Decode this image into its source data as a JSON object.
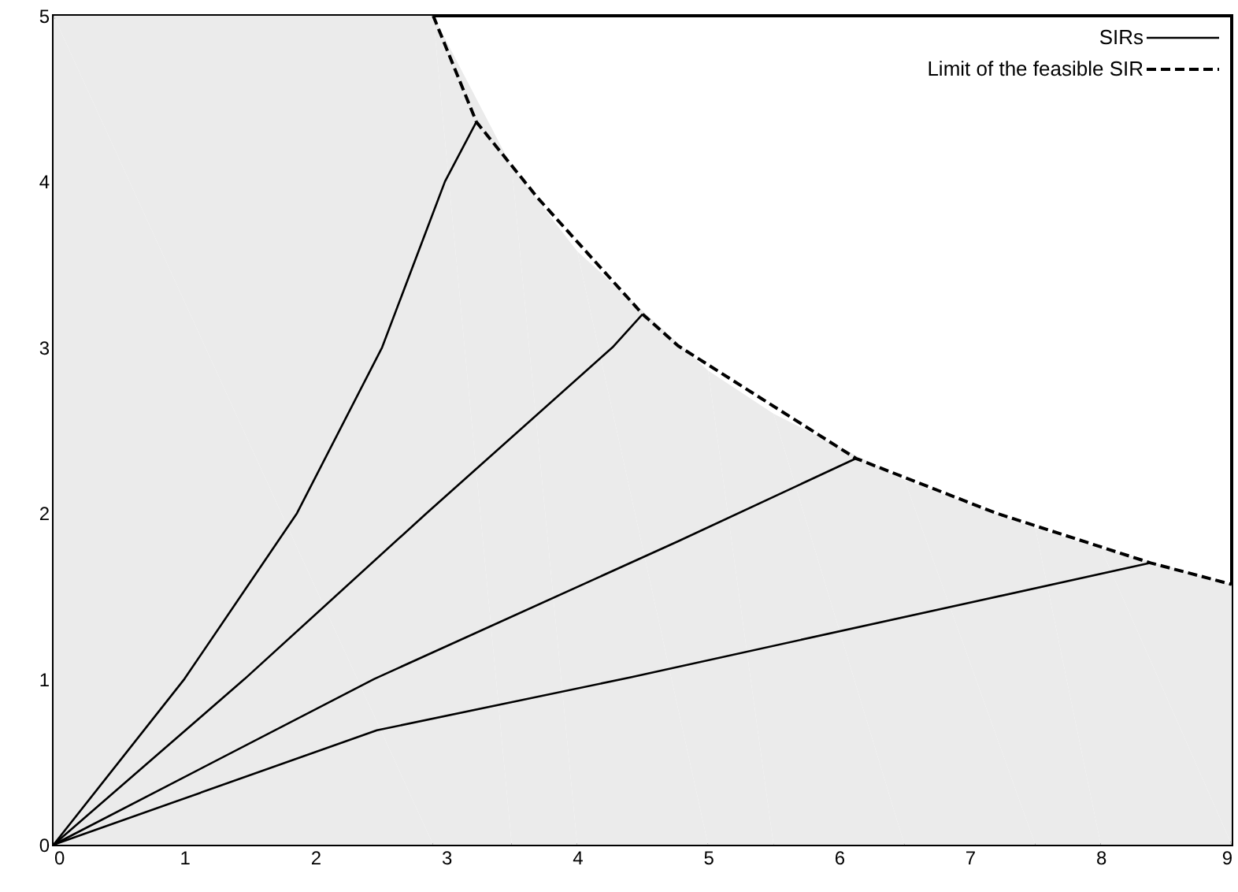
{
  "chart_data": {
    "type": "line",
    "xlim": [
      0,
      9
    ],
    "ylim": [
      0,
      5
    ],
    "xticks": [
      0,
      1,
      2,
      3,
      4,
      5,
      6,
      7,
      8,
      9
    ],
    "yticks": [
      0,
      1,
      2,
      3,
      4,
      5
    ],
    "grid": false,
    "legend": "top right",
    "marker": "none",
    "series": [
      {
        "name": "SIRs",
        "color": "#000000",
        "line_style": "solid",
        "x": [
          0,
          1.0,
          1.86,
          2.51,
          2.99,
          3.23
        ],
        "values": [
          0,
          1,
          2,
          3,
          4,
          4.36
        ]
      },
      {
        "color": "#000000",
        "line_style": "solid",
        "x": [
          0,
          1.46,
          2.85,
          4.27,
          4.5
        ],
        "values": [
          0,
          1,
          2,
          3,
          3.2
        ]
      },
      {
        "color": "#000000",
        "line_style": "solid",
        "x": [
          0,
          2.45,
          4.77,
          6.13
        ],
        "values": [
          0,
          1,
          1.83,
          2.33
        ]
      },
      {
        "color": "#000000",
        "line_style": "solid",
        "x": [
          0,
          2.47,
          4.41,
          8.38
        ],
        "values": [
          0,
          0.69,
          1.01,
          1.7
        ]
      },
      {
        "name": "Limit of the feasible SIR",
        "color": "#000000",
        "line_style": "dashed",
        "x": [
          2.9,
          3.23,
          3.7,
          4.5,
          4.77,
          6.13,
          7.2,
          8.38,
          9
        ],
        "values": [
          5,
          4.36,
          3.9,
          3.2,
          3.01,
          2.33,
          2.0,
          1.7,
          1.57
        ]
      },
      {
        "type": "area",
        "color": "#ebebeb",
        "x": [
          0,
          2.9,
          3.5,
          4.0,
          5.0,
          5.5,
          6.5,
          7.5,
          8.0,
          9
        ],
        "values": [
          5,
          5,
          4.09,
          3.58,
          2.86,
          2.6,
          2.2,
          1.91,
          1.79,
          1.57
        ]
      }
    ]
  }
}
